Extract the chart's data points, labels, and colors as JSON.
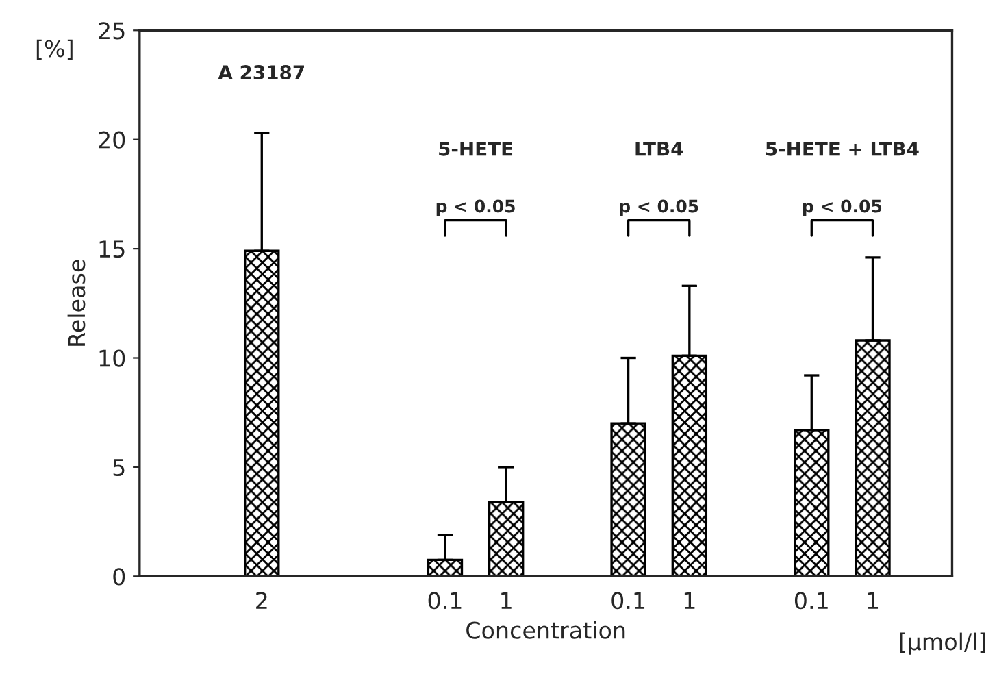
{
  "chart_data": {
    "type": "bar",
    "xlabel": "Concentration",
    "ylabel": "Release",
    "categories": [
      "2",
      null,
      null,
      "0.1",
      "1",
      null,
      "0.1",
      "1",
      null,
      "0.1",
      "1"
    ],
    "values": [
      14.9,
      null,
      null,
      0.75,
      3.4,
      null,
      7.0,
      10.1,
      null,
      6.7,
      10.8
    ],
    "errors": [
      [
        14.9,
        20.3
      ],
      null,
      null,
      [
        0.75,
        1.9
      ],
      [
        3.4,
        5.0
      ],
      null,
      [
        7.0,
        10.0
      ],
      [
        10.1,
        13.3
      ],
      null,
      [
        6.7,
        9.2
      ],
      [
        10.8,
        14.6
      ]
    ],
    "color": "#000000",
    "ylim": [
      0,
      25
    ],
    "yticks": [
      0,
      5,
      10,
      15,
      20,
      25
    ],
    "grid": false,
    "legend": false,
    "annotations": [
      "[%]",
      "[µmol/l]",
      "A 23187",
      "5-HETE",
      "LTB4",
      "5-HETE + LTB4",
      "p < 0.05",
      "p < 0.05",
      "p < 0.05"
    ]
  }
}
